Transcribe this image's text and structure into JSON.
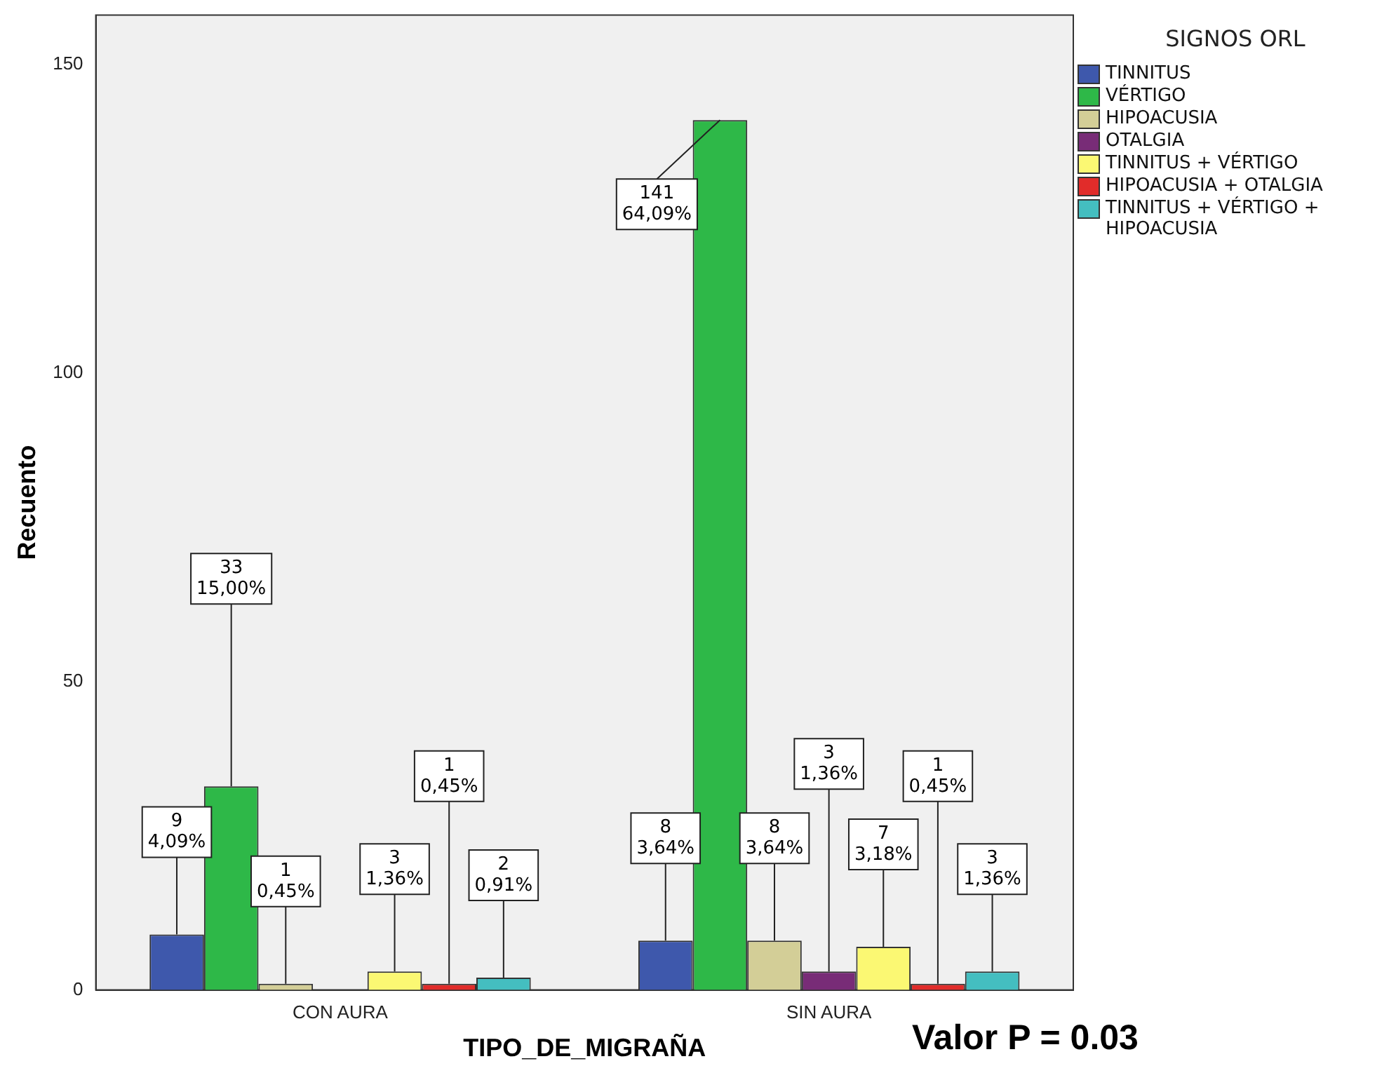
{
  "chart_data": {
    "type": "bar",
    "xlabel": "TIPO_DE_MIGRAÑA",
    "ylabel": "Recuento",
    "legend_title": "SIGNOS ORL",
    "categories": [
      "CON AURA",
      "SIN AURA"
    ],
    "series": [
      {
        "name": "TINNITUS",
        "color": "#3e58ac",
        "values": [
          9,
          8
        ],
        "value_labels": [
          "9\n4,09%",
          "8\n3,64%"
        ]
      },
      {
        "name": "VÉRTIGO",
        "color": "#2eb848",
        "values": [
          33,
          141
        ],
        "value_labels": [
          "33\n15,00%",
          "141\n64,09%"
        ]
      },
      {
        "name": "HIPOACUSIA",
        "color": "#d3ce97",
        "values": [
          1,
          8
        ],
        "value_labels": [
          "1\n0,45%",
          "8\n3,64%"
        ]
      },
      {
        "name": "OTALGIA",
        "color": "#782c77",
        "values": [
          null,
          3
        ],
        "value_labels": [
          null,
          "3\n1,36%"
        ]
      },
      {
        "name": "TINNITUS + VÉRTIGO",
        "color": "#fbf873",
        "values": [
          3,
          7
        ],
        "value_labels": [
          "3\n1,36%",
          "7\n3,18%"
        ]
      },
      {
        "name": "HIPOACUSIA + OTALGIA",
        "color": "#e12c2a",
        "values": [
          1,
          1
        ],
        "value_labels": [
          "1\n0,45%",
          "1\n0,45%"
        ]
      },
      {
        "name": "TINNITUS + VÉRTIGO + HIPOACUSIA",
        "color": "#44bec0",
        "values": [
          2,
          3
        ],
        "value_labels": [
          "2\n0,91%",
          "3\n1,36%"
        ]
      }
    ],
    "ylim": [
      0,
      158
    ],
    "yticks": [
      0,
      50,
      100,
      150
    ],
    "grid": false,
    "legend": "top right",
    "annotations": [
      "Valor P = 0.03"
    ]
  }
}
